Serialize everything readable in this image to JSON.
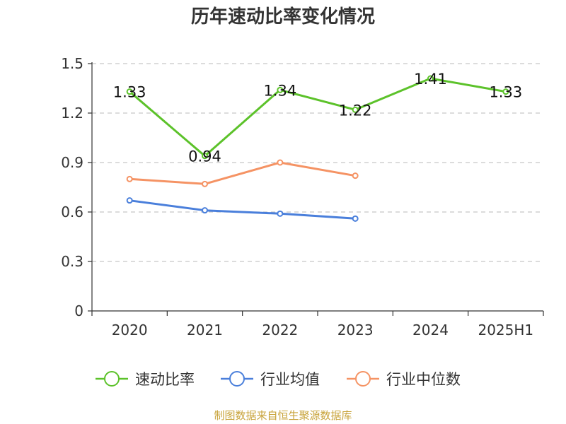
{
  "chart_data": {
    "type": "line",
    "title": "历年速动比率变化情况",
    "categories": [
      "2020",
      "2021",
      "2022",
      "2023",
      "2024",
      "2025H1"
    ],
    "ylim": [
      0,
      1.5
    ],
    "yticks": [
      "0",
      "0.3",
      "0.6",
      "0.9",
      "1.2",
      "1.5"
    ],
    "grid": true,
    "legend_position": "bottom",
    "series": [
      {
        "name": "速动比率",
        "color": "#5cc22a",
        "values": [
          1.33,
          0.94,
          1.34,
          1.22,
          1.41,
          1.33
        ],
        "data_labels": [
          "1.33",
          "0.94",
          "1.34",
          "1.22",
          "1.41",
          "1.33"
        ]
      },
      {
        "name": "行业均值",
        "color": "#4a7fdb",
        "values": [
          0.67,
          0.61,
          0.59,
          0.56,
          null,
          null
        ]
      },
      {
        "name": "行业中位数",
        "color": "#f59364",
        "values": [
          0.8,
          0.77,
          0.9,
          0.82,
          null,
          null
        ]
      }
    ]
  },
  "footer": {
    "source": "制图数据来自恒生聚源数据库"
  }
}
